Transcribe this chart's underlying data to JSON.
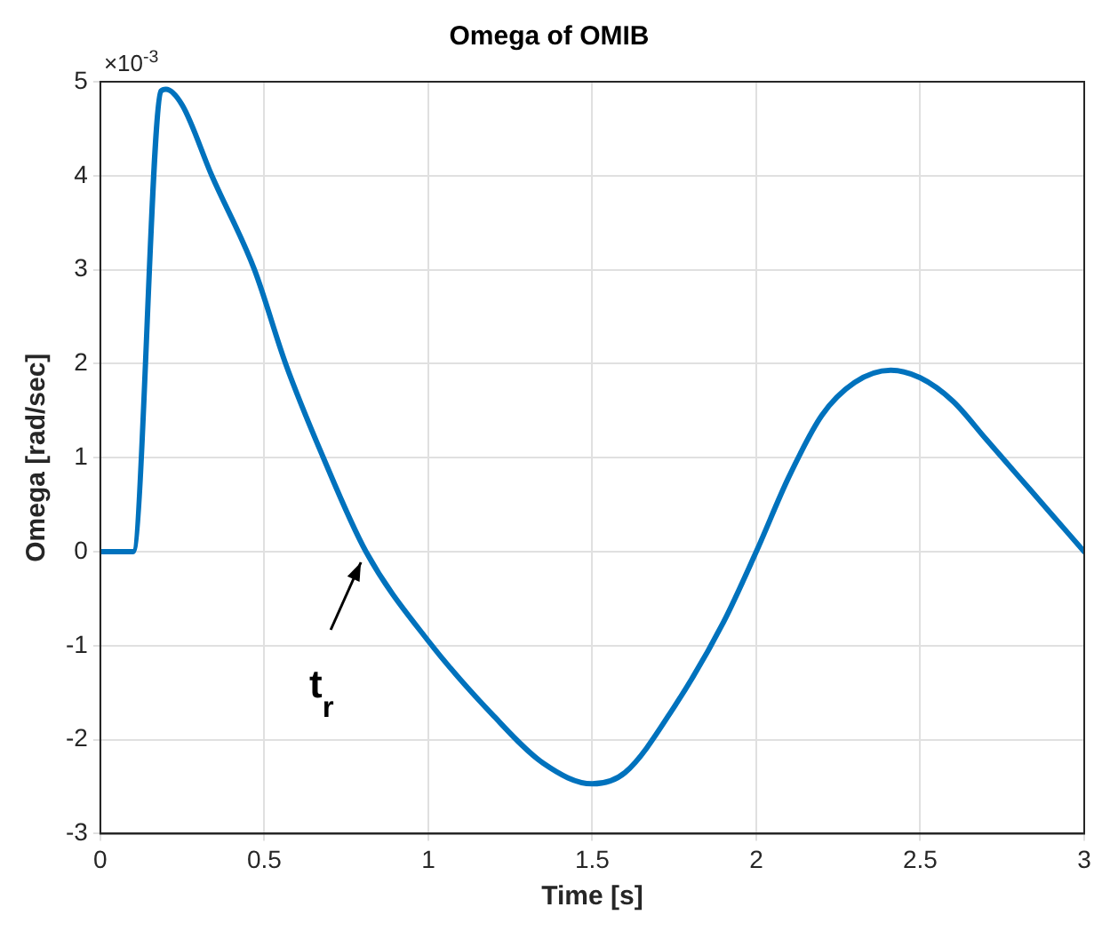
{
  "chart_data": {
    "type": "line",
    "title": "Omega of OMIB",
    "xlabel": "Time [s]",
    "ylabel": "Omega [rad/sec]",
    "x": [
      0,
      0.1,
      0.185,
      0.2,
      0.25,
      0.34,
      0.47,
      0.565,
      0.68,
      0.81,
      1.0,
      1.2,
      1.35,
      1.5,
      1.6,
      1.75,
      1.9,
      2.0,
      2.1,
      2.2,
      2.3,
      2.41,
      2.5,
      2.6,
      2.7,
      2.8,
      2.9,
      3.0
    ],
    "series": [
      {
        "color": "#0072bd",
        "values": [
          0,
          0,
          4.9,
          4.92,
          4.75,
          4.0,
          3.0,
          2.0,
          1.0,
          0,
          -0.95,
          -1.75,
          -2.25,
          -2.47,
          -2.35,
          -1.65,
          -0.75,
          0,
          0.8,
          1.45,
          1.8,
          1.93,
          1.85,
          1.6,
          1.2,
          0.8,
          0.4,
          0
        ]
      }
    ],
    "xlim": [
      0,
      3
    ],
    "xticks": [
      0,
      0.5,
      1,
      1.5,
      2,
      2.5,
      3
    ],
    "ylim": [
      -3,
      5
    ],
    "yticks": [
      -3,
      -2,
      -1,
      0,
      1,
      2,
      3,
      4,
      5
    ],
    "grid": true,
    "legend": false,
    "marker": "none",
    "line_style": "solid",
    "annotations": [
      "×10$^{-3}$",
      {
        "text": "t$_{r}$",
        "x": 0.8,
        "y": 0
      }
    ]
  }
}
